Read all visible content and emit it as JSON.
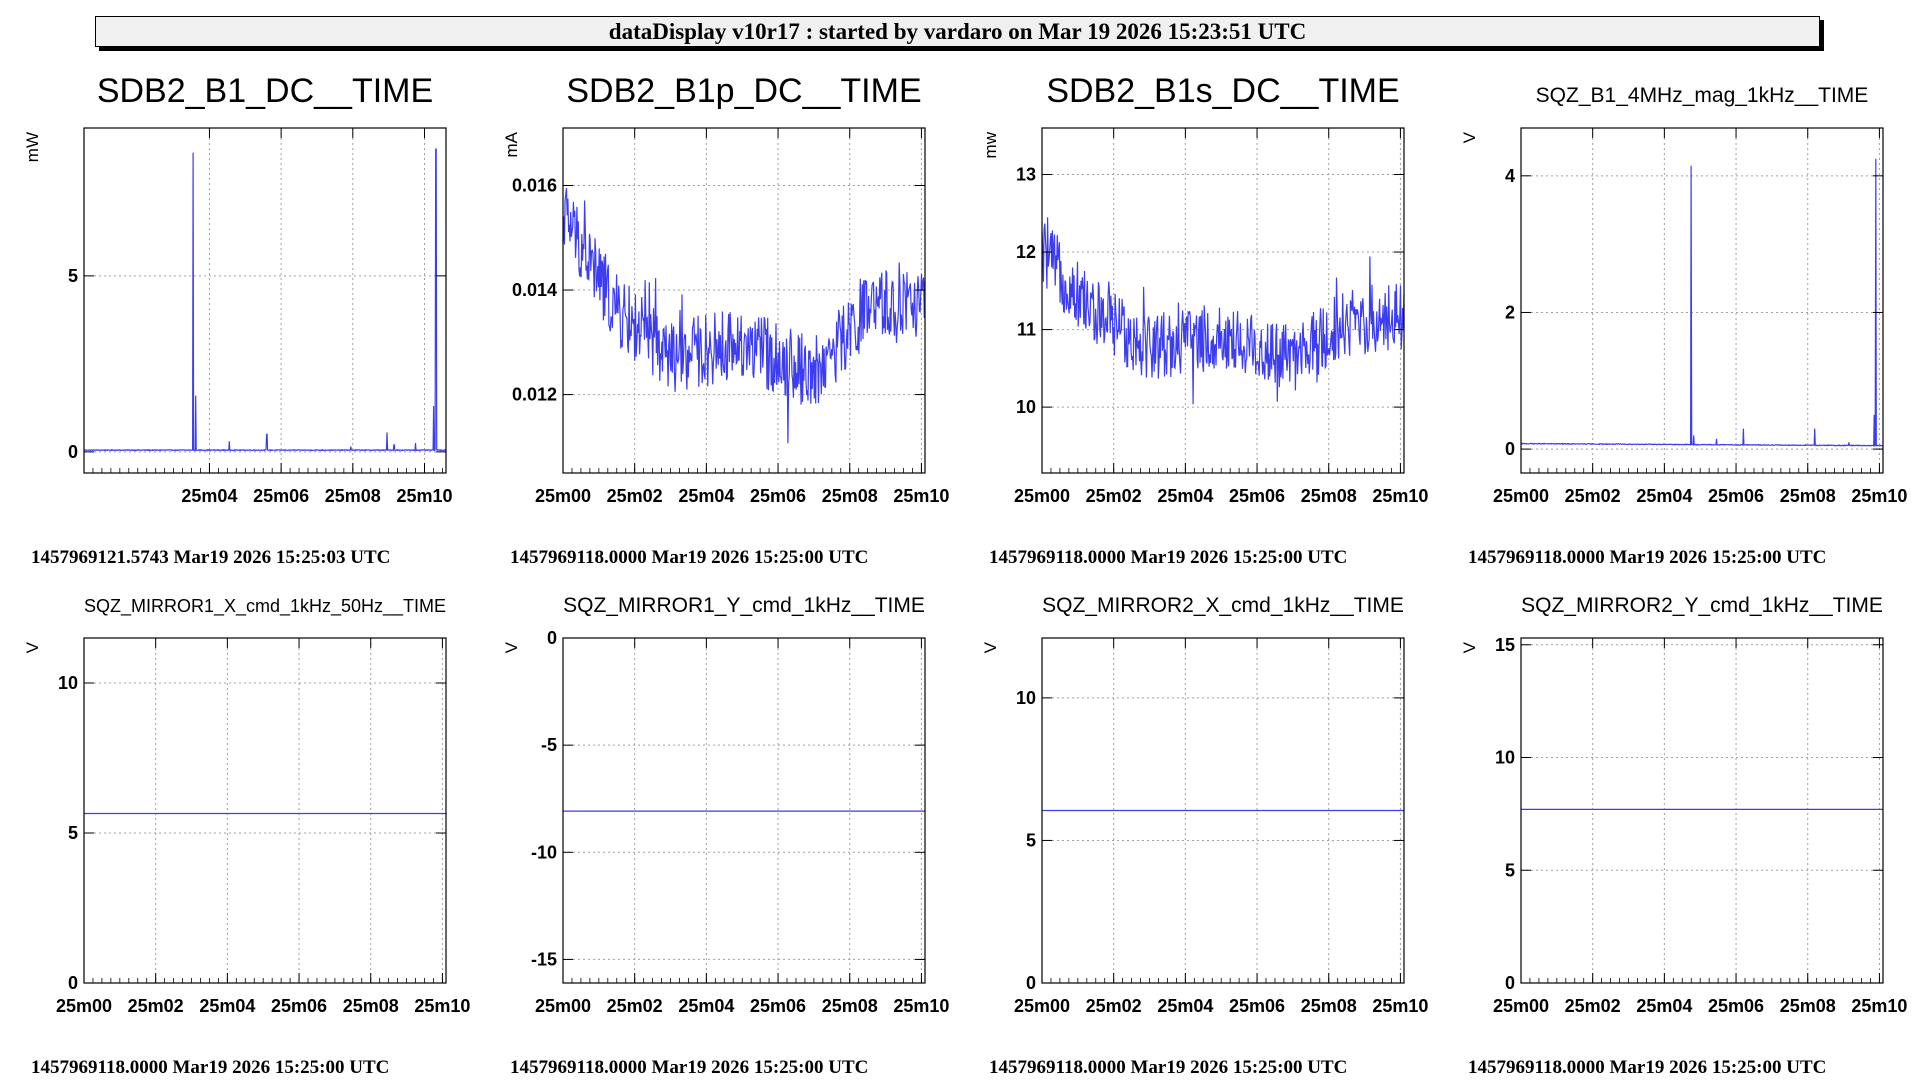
{
  "header": {
    "title": "dataDisplay v10r17 : started by vardaro on Mar 19 2026 15:23:51 UTC"
  },
  "colors": {
    "trace": "#3d3df0",
    "grid": "#a0a0a0",
    "frame": "#000000",
    "header_bg": "#f0f0f0"
  },
  "chart_data": [
    {
      "type": "line",
      "title": "SDB2_B1_DC__TIME",
      "ylabel": "mW",
      "xlim": [
        0.5,
        10.6
      ],
      "ylim": [
        -0.6,
        9.2
      ],
      "x_ticks": [
        "25m04",
        "25m06",
        "25m08",
        "25m10"
      ],
      "x_tick_values": [
        4,
        6,
        8,
        10
      ],
      "y_ticks": [
        "0",
        "5"
      ],
      "y_tick_values": [
        0,
        5
      ],
      "baseline": 0.05,
      "noise": 0.02,
      "spikes": [
        [
          3.55,
          8.5
        ],
        [
          3.62,
          1.6
        ],
        [
          4.55,
          0.3
        ],
        [
          5.6,
          0.5
        ],
        [
          7.95,
          0.15
        ],
        [
          8.95,
          0.55
        ],
        [
          9.15,
          0.2
        ],
        [
          9.75,
          0.25
        ],
        [
          10.25,
          1.3
        ],
        [
          10.32,
          8.6
        ]
      ],
      "timestamp": "1457969121.5743 Mar19 2026 15:25:03 UTC"
    },
    {
      "type": "line",
      "title": "SDB2_B1p_DC__TIME",
      "ylabel": "mA",
      "xlim": [
        0,
        10.1
      ],
      "ylim": [
        0.0105,
        0.0171
      ],
      "x_ticks": [
        "25m00",
        "25m02",
        "25m04",
        "25m06",
        "25m08",
        "25m10"
      ],
      "x_tick_values": [
        0,
        2,
        4,
        6,
        8,
        10
      ],
      "y_ticks": [
        "0.012",
        "0.014",
        "0.016"
      ],
      "y_tick_values": [
        0.012,
        0.014,
        0.016
      ],
      "envelope": [
        [
          0,
          0.0155
        ],
        [
          1.5,
          0.0136
        ],
        [
          3,
          0.0127
        ],
        [
          5,
          0.013
        ],
        [
          7,
          0.0124
        ],
        [
          8.5,
          0.0136
        ],
        [
          10.1,
          0.0138
        ]
      ],
      "noise": 0.0014,
      "timestamp": "1457969118.0000 Mar19 2026 15:25:00 UTC"
    },
    {
      "type": "line",
      "title": "SDB2_B1s_DC__TIME",
      "ylabel": "mw",
      "xlim": [
        0,
        10.1
      ],
      "ylim": [
        9.15,
        13.6
      ],
      "x_ticks": [
        "25m00",
        "25m02",
        "25m04",
        "25m06",
        "25m08",
        "25m10"
      ],
      "x_tick_values": [
        0,
        2,
        4,
        6,
        8,
        10
      ],
      "y_ticks": [
        "10",
        "11",
        "12",
        "13"
      ],
      "y_tick_values": [
        10,
        11,
        12,
        13
      ],
      "envelope": [
        [
          0,
          12.0
        ],
        [
          1.5,
          11.2
        ],
        [
          3,
          10.8
        ],
        [
          5,
          10.9
        ],
        [
          7,
          10.6
        ],
        [
          8.5,
          11.1
        ],
        [
          10.1,
          11.2
        ]
      ],
      "noise": 0.9,
      "timestamp": "1457969118.0000 Mar19 2026 15:25:00 UTC"
    },
    {
      "type": "line",
      "title": "SQZ_B1_4MHz_mag_1kHz__TIME",
      "ylabel": "V",
      "xlim": [
        0,
        10.1
      ],
      "ylim": [
        -0.35,
        4.7
      ],
      "x_ticks": [
        "25m00",
        "25m02",
        "25m04",
        "25m06",
        "25m08",
        "25m10"
      ],
      "x_tick_values": [
        0,
        2,
        4,
        6,
        8,
        10
      ],
      "y_ticks": [
        "0",
        "2",
        "4"
      ],
      "y_tick_values": [
        0,
        2,
        4
      ],
      "baseline": 0.08,
      "baseline_end": 0.05,
      "noise": 0.01,
      "spikes": [
        [
          4.75,
          4.15
        ],
        [
          4.82,
          0.2
        ],
        [
          5.45,
          0.15
        ],
        [
          6.2,
          0.3
        ],
        [
          8.2,
          0.3
        ],
        [
          9.15,
          0.1
        ],
        [
          9.85,
          0.5
        ],
        [
          9.9,
          4.25
        ]
      ],
      "timestamp": "1457969118.0000 Mar19 2026 15:25:00 UTC"
    },
    {
      "type": "line",
      "title": "SQZ_MIRROR1_X_cmd_1kHz_50Hz__TIME",
      "ylabel": "V",
      "xlim": [
        0,
        10.1
      ],
      "ylim": [
        0,
        11.5
      ],
      "x_ticks": [
        "25m00",
        "25m02",
        "25m04",
        "25m06",
        "25m08",
        "25m10"
      ],
      "x_tick_values": [
        0,
        2,
        4,
        6,
        8,
        10
      ],
      "y_ticks": [
        "0",
        "5",
        "10"
      ],
      "y_tick_values": [
        0,
        5,
        10
      ],
      "constant": 5.65,
      "timestamp": "1457969118.0000 Mar19 2026 15:25:00 UTC"
    },
    {
      "type": "line",
      "title": "SQZ_MIRROR1_Y_cmd_1kHz__TIME",
      "ylabel": "V",
      "xlim": [
        0,
        10.1
      ],
      "ylim": [
        -16.1,
        0
      ],
      "x_ticks": [
        "25m00",
        "25m02",
        "25m04",
        "25m06",
        "25m08",
        "25m10"
      ],
      "x_tick_values": [
        0,
        2,
        4,
        6,
        8,
        10
      ],
      "y_ticks": [
        "-15",
        "-10",
        "-5",
        "0"
      ],
      "y_tick_values": [
        -15,
        -10,
        -5,
        0
      ],
      "constant": -8.08,
      "timestamp": "1457969118.0000 Mar19 2026 15:25:00 UTC"
    },
    {
      "type": "line",
      "title": "SQZ_MIRROR2_X_cmd_1kHz__TIME",
      "ylabel": "V",
      "xlim": [
        0,
        10.1
      ],
      "ylim": [
        0,
        12.1
      ],
      "x_ticks": [
        "25m00",
        "25m02",
        "25m04",
        "25m06",
        "25m08",
        "25m10"
      ],
      "x_tick_values": [
        0,
        2,
        4,
        6,
        8,
        10
      ],
      "y_ticks": [
        "0",
        "5",
        "10"
      ],
      "y_tick_values": [
        0,
        5,
        10
      ],
      "constant": 6.05,
      "timestamp": "1457969118.0000 Mar19 2026 15:25:00 UTC"
    },
    {
      "type": "line",
      "title": "SQZ_MIRROR2_Y_cmd_1kHz__TIME",
      "ylabel": "V",
      "xlim": [
        0,
        10.1
      ],
      "ylim": [
        0,
        15.3
      ],
      "x_ticks": [
        "25m00",
        "25m02",
        "25m04",
        "25m06",
        "25m08",
        "25m10"
      ],
      "x_tick_values": [
        0,
        2,
        4,
        6,
        8,
        10
      ],
      "y_ticks": [
        "0",
        "5",
        "10",
        "15"
      ],
      "y_tick_values": [
        0,
        5,
        10,
        15
      ],
      "constant": 7.7,
      "timestamp": "1457969118.0000 Mar19 2026 15:25:00 UTC"
    }
  ]
}
